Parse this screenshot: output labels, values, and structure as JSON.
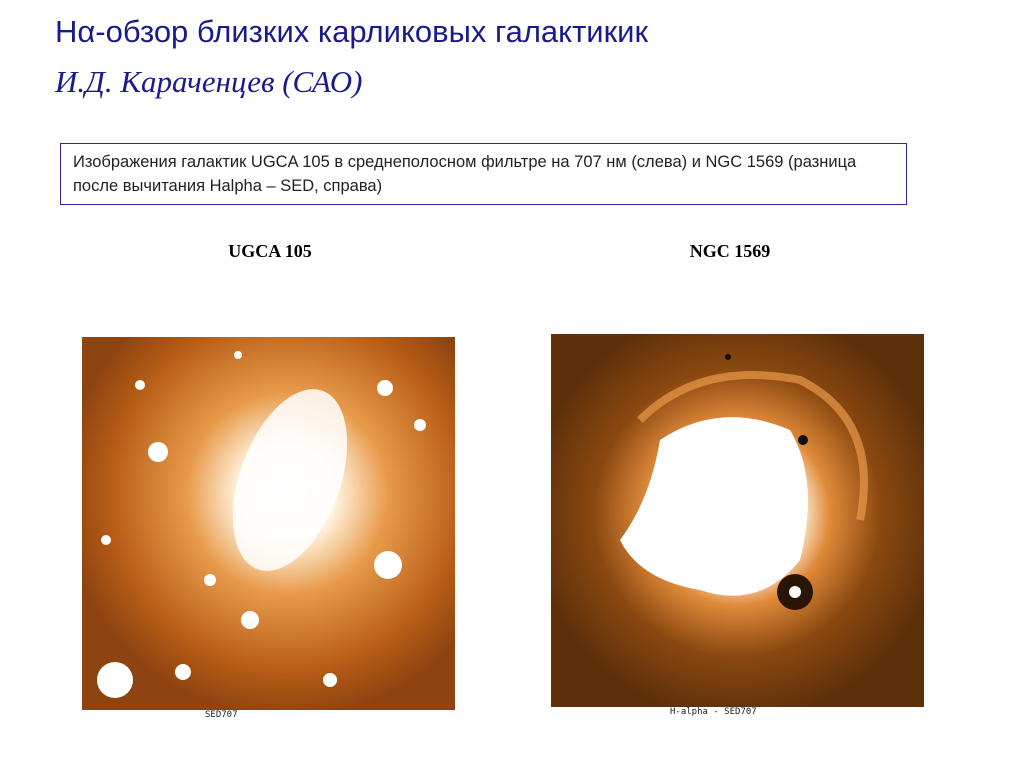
{
  "header": {
    "title": "Hα-обзор близких карликовых галактикик",
    "author": "И.Д.  Караченцев (САО)"
  },
  "caption": "Изображения галактик UGCA 105 в среднеполосном фильтре на 707 нм (слева) и NGC 1569 (разница после вычитания Halpha – SED, справа)",
  "panels": [
    {
      "label": "UGCA 105",
      "image_caption": "SED707"
    },
    {
      "label": "NGC 1569",
      "image_caption": "H-alpha - SED707"
    }
  ]
}
